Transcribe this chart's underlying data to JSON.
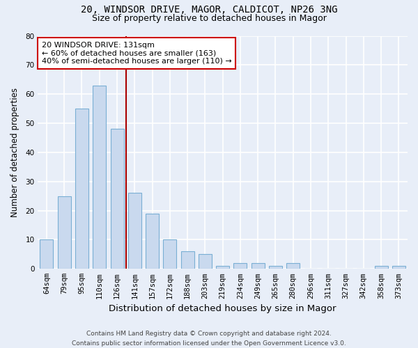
{
  "title1": "20, WINDSOR DRIVE, MAGOR, CALDICOT, NP26 3NG",
  "title2": "Size of property relative to detached houses in Magor",
  "xlabel": "Distribution of detached houses by size in Magor",
  "ylabel": "Number of detached properties",
  "categories": [
    "64sqm",
    "79sqm",
    "95sqm",
    "110sqm",
    "126sqm",
    "141sqm",
    "157sqm",
    "172sqm",
    "188sqm",
    "203sqm",
    "219sqm",
    "234sqm",
    "249sqm",
    "265sqm",
    "280sqm",
    "296sqm",
    "311sqm",
    "327sqm",
    "342sqm",
    "358sqm",
    "373sqm"
  ],
  "values": [
    10,
    25,
    55,
    63,
    48,
    26,
    19,
    10,
    6,
    5,
    1,
    2,
    2,
    1,
    2,
    0,
    0,
    0,
    0,
    1,
    1
  ],
  "bar_color": "#c9d9ee",
  "bar_edgecolor": "#7aafd4",
  "bar_linewidth": 0.8,
  "bar_width": 0.75,
  "vline_x": 4.5,
  "vline_color": "#aa0000",
  "vline_linewidth": 1.5,
  "ylim": [
    0,
    80
  ],
  "yticks": [
    0,
    10,
    20,
    30,
    40,
    50,
    60,
    70,
    80
  ],
  "annotation_text": "20 WINDSOR DRIVE: 131sqm\n← 60% of detached houses are smaller (163)\n40% of semi-detached houses are larger (110) →",
  "annotation_box_edgecolor": "#cc0000",
  "annotation_box_facecolor": "white",
  "annotation_fontsize": 8.0,
  "footer1": "Contains HM Land Registry data © Crown copyright and database right 2024.",
  "footer2": "Contains public sector information licensed under the Open Government Licence v3.0.",
  "background_color": "#e8eef8",
  "grid_color": "white",
  "title1_fontsize": 10,
  "title2_fontsize": 9,
  "xlabel_fontsize": 9.5,
  "ylabel_fontsize": 8.5,
  "tick_fontsize": 7.5,
  "footer_fontsize": 6.5
}
